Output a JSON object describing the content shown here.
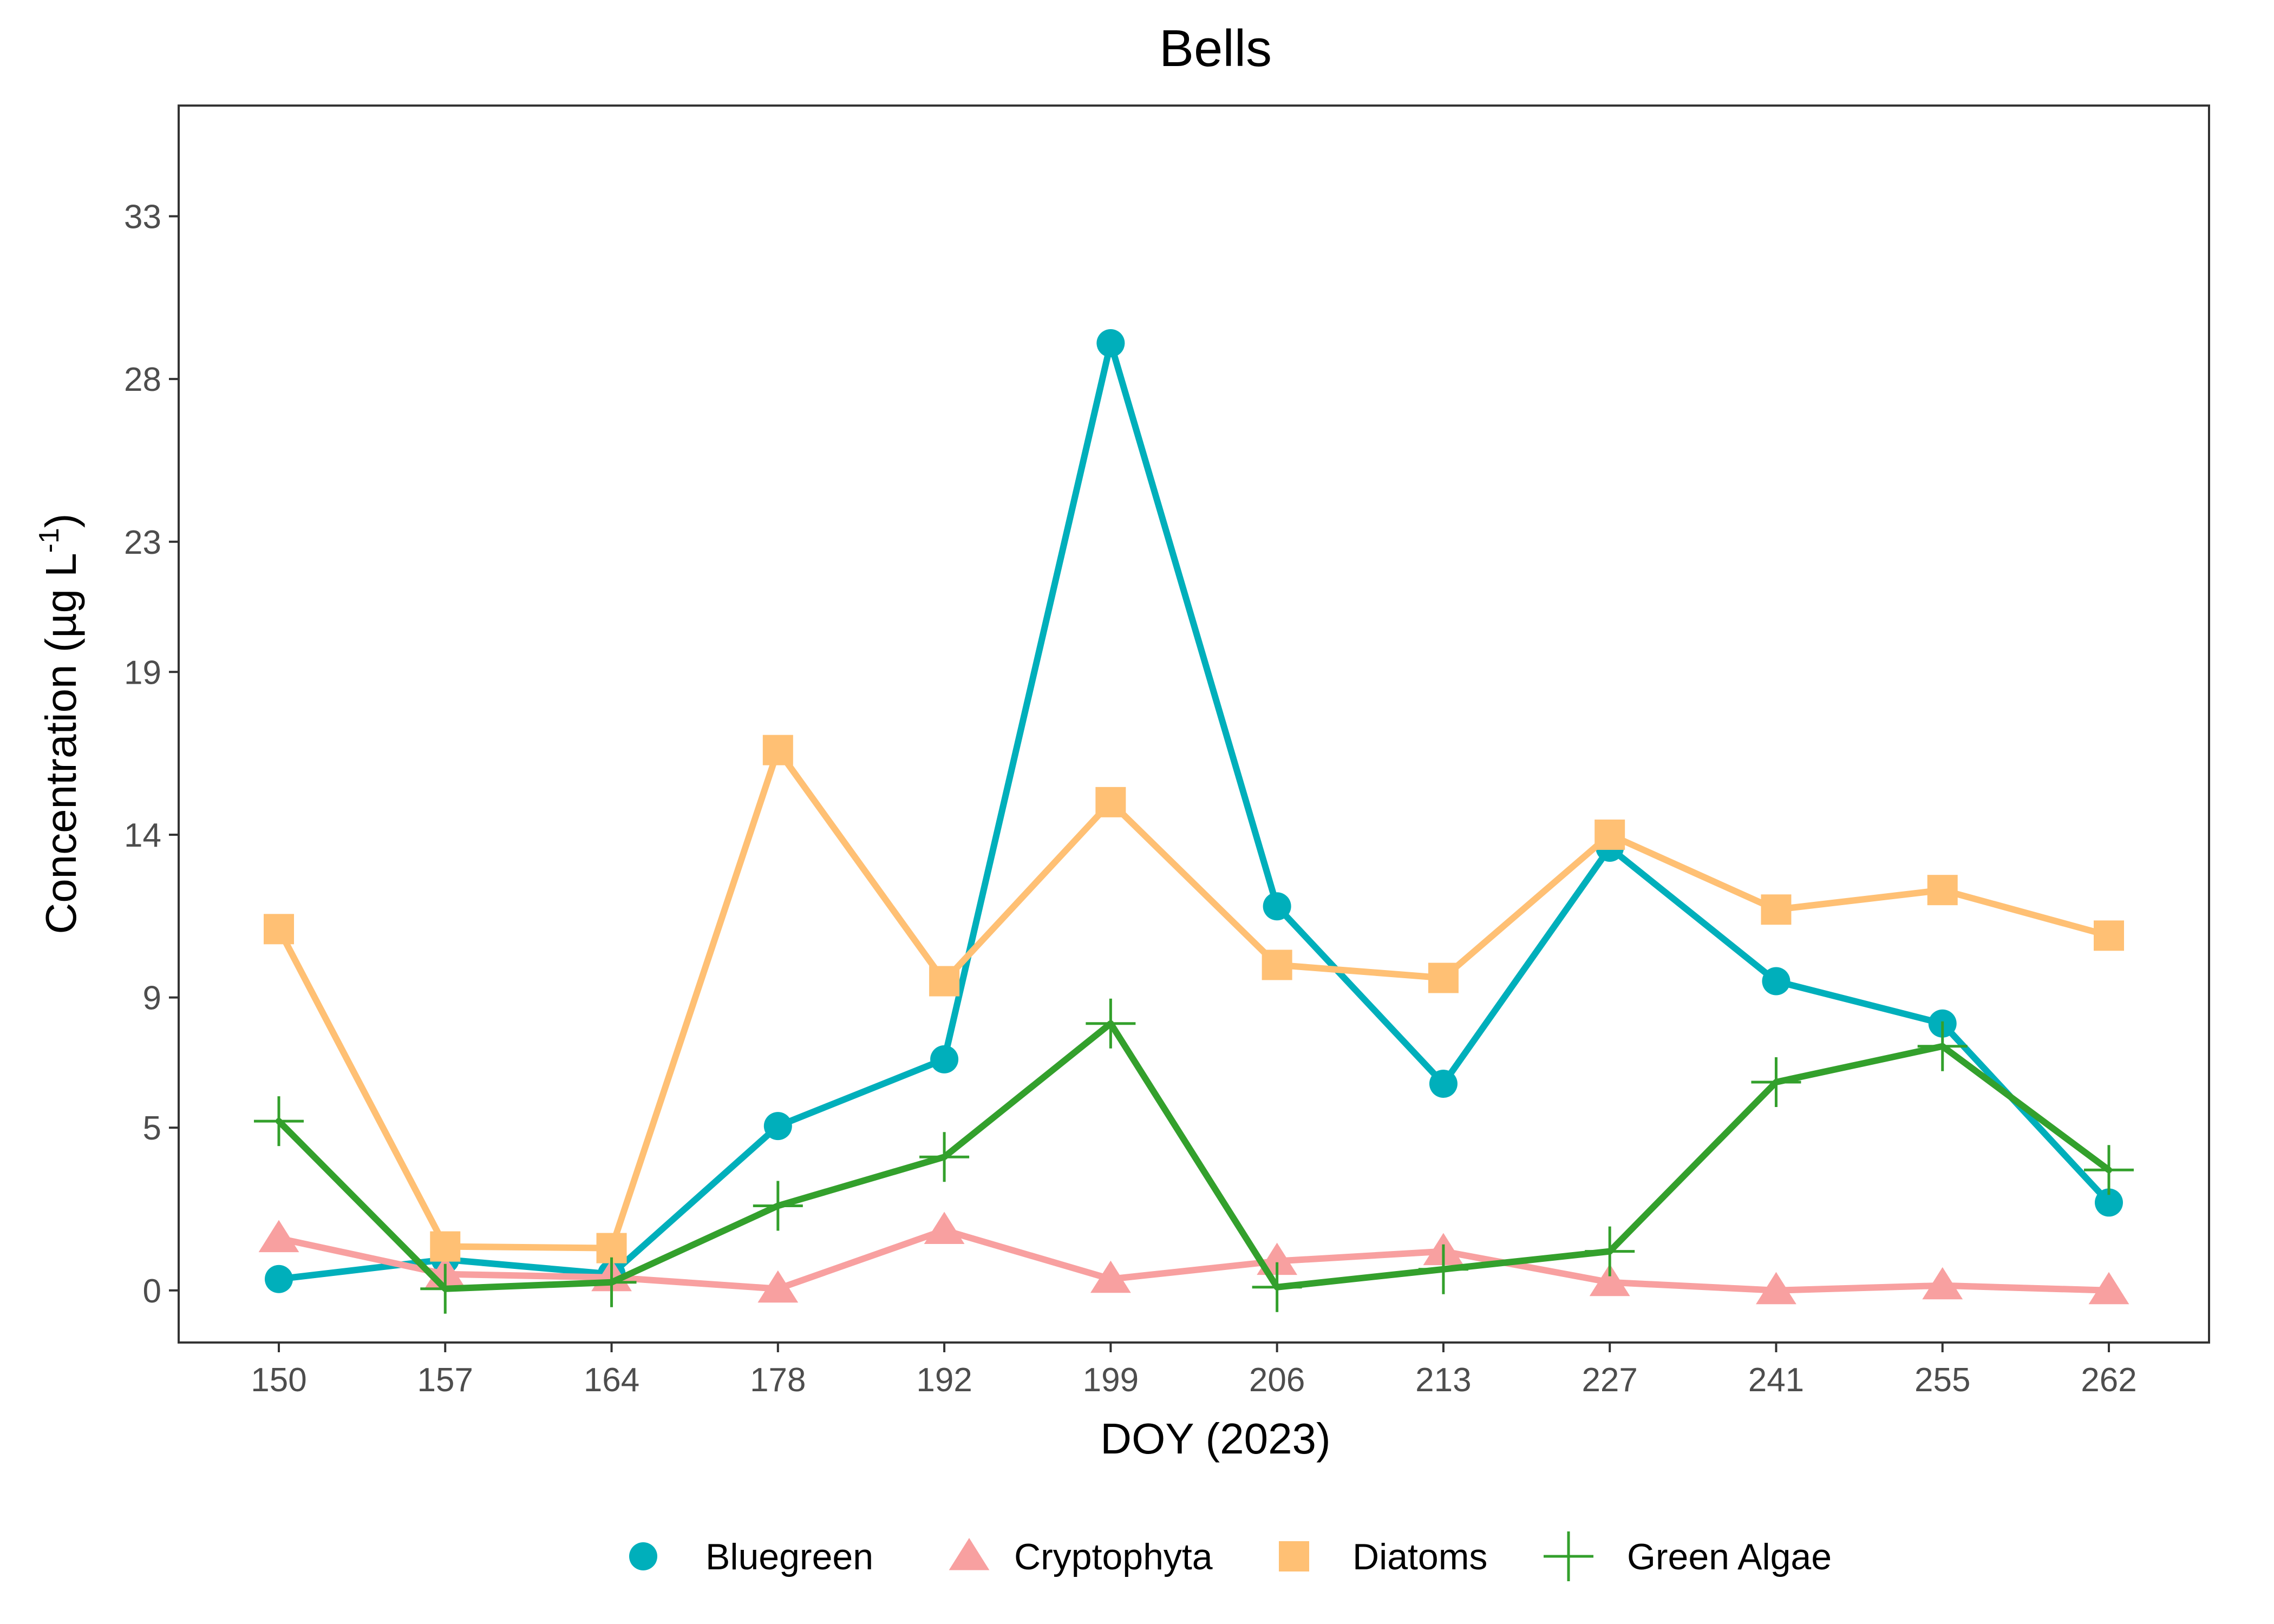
{
  "chart_data": {
    "type": "line",
    "title": "Bells",
    "xlabel": "DOY (2023)",
    "ylabel": "Concentration (µg L",
    "ylabel_superscript": "-1",
    "ylabel_close": ")",
    "categories": [
      "150",
      "157",
      "164",
      "178",
      "192",
      "199",
      "206",
      "213",
      "227",
      "241",
      "255",
      "262"
    ],
    "yticks": [
      "0",
      "5",
      "9",
      "14",
      "19",
      "23",
      "28",
      "33"
    ],
    "ylim": [
      -1.6,
      36.4
    ],
    "grid": false,
    "legend_position": "bottom",
    "series": [
      {
        "name": "Bluegreen",
        "color": "#00AFBB",
        "marker": "circle",
        "values": [
          0.35,
          0.95,
          0.5,
          5.05,
          7.1,
          29.1,
          11.8,
          6.35,
          13.6,
          9.5,
          8.2,
          2.7
        ]
      },
      {
        "name": "Cryptophyta",
        "color": "#F8A0A0",
        "marker": "triangle",
        "values": [
          1.6,
          0.5,
          0.4,
          0.05,
          1.85,
          0.35,
          0.9,
          1.2,
          0.25,
          0.0,
          0.15,
          0.0
        ]
      },
      {
        "name": "Diatoms",
        "color": "#FFC074",
        "marker": "square",
        "values": [
          11.1,
          1.35,
          1.3,
          16.6,
          9.5,
          15.0,
          10.0,
          9.6,
          14.0,
          11.7,
          12.3,
          10.9
        ]
      },
      {
        "name": "Green Algae",
        "color": "#33A02C",
        "marker": "plus",
        "values": [
          5.2,
          0.05,
          0.25,
          2.6,
          4.1,
          8.2,
          0.1,
          0.65,
          1.2,
          6.4,
          7.5,
          3.7
        ]
      }
    ]
  }
}
